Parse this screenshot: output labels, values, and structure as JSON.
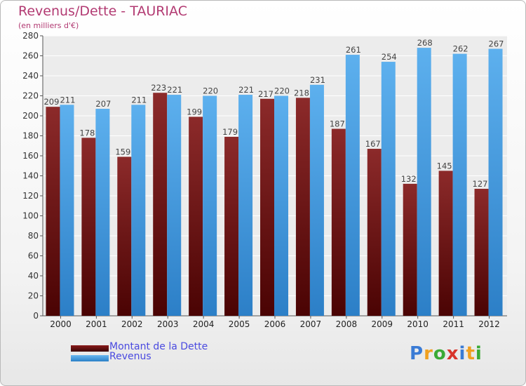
{
  "header": {
    "title": "Revenus/Dette - TAURIAC",
    "subtitle": "(en milliers d'€)"
  },
  "chart_data": {
    "type": "bar",
    "categories": [
      "2000",
      "2001",
      "2002",
      "2003",
      "2004",
      "2005",
      "2006",
      "2007",
      "2008",
      "2009",
      "2010",
      "2011",
      "2012"
    ],
    "series": [
      {
        "name": "Montant de la Dette",
        "values": [
          209,
          178,
          159,
          223,
          199,
          179,
          217,
          218,
          187,
          167,
          132,
          145,
          127
        ],
        "color": "#7a1616"
      },
      {
        "name": "Revenus",
        "values": [
          211,
          207,
          211,
          221,
          220,
          221,
          220,
          231,
          261,
          254,
          268,
          262,
          267
        ],
        "color": "#3d93d8"
      }
    ],
    "ylim": [
      0,
      280
    ],
    "yticks": [
      0,
      20,
      40,
      60,
      80,
      100,
      120,
      140,
      160,
      180,
      200,
      220,
      240,
      260,
      280
    ],
    "grid": true,
    "legend_position": "bottom-left"
  },
  "legend": {
    "items": [
      {
        "label": "Montant de la Dette",
        "color": "#5a0b0b"
      },
      {
        "label": "Revenus",
        "color": "#3d93d8"
      }
    ]
  },
  "logo": {
    "letters": [
      "P",
      "r",
      "o",
      "x",
      "i",
      "t",
      "i"
    ],
    "colors": [
      "#3a7bd5",
      "#f0a020",
      "#3aaa35",
      "#d8342a",
      "#3a7bd5",
      "#f0a020",
      "#3aaa35"
    ]
  }
}
